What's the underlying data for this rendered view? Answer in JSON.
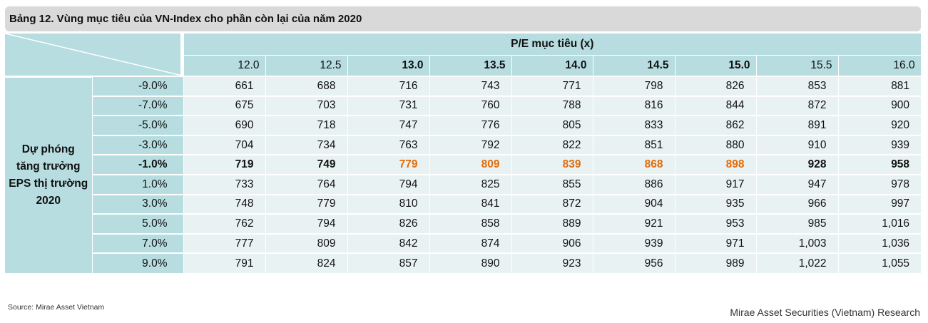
{
  "title": "Bảng 12. Vùng mục tiêu của VN-Index cho phần còn lại của năm 2020",
  "pe_title": "P/E mục tiêu (x)",
  "pe_values": [
    {
      "label": "12.0",
      "bold": false
    },
    {
      "label": "12.5",
      "bold": false
    },
    {
      "label": "13.0",
      "bold": true
    },
    {
      "label": "13.5",
      "bold": true
    },
    {
      "label": "14.0",
      "bold": true
    },
    {
      "label": "14.5",
      "bold": true
    },
    {
      "label": "15.0",
      "bold": true
    },
    {
      "label": "15.5",
      "bold": false
    },
    {
      "label": "16.0",
      "bold": false
    }
  ],
  "row_header": {
    "line1": "Dự phóng",
    "line2": "tăng trưởng",
    "line3": "EPS thị trường",
    "line4": "2020"
  },
  "rows": [
    {
      "growth": "-9.0%",
      "highlight": false,
      "cells": [
        {
          "v": "661"
        },
        {
          "v": "688"
        },
        {
          "v": "716"
        },
        {
          "v": "743"
        },
        {
          "v": "771"
        },
        {
          "v": "798"
        },
        {
          "v": "826"
        },
        {
          "v": "853"
        },
        {
          "v": "881"
        }
      ]
    },
    {
      "growth": "-7.0%",
      "highlight": false,
      "cells": [
        {
          "v": "675"
        },
        {
          "v": "703"
        },
        {
          "v": "731"
        },
        {
          "v": "760"
        },
        {
          "v": "788"
        },
        {
          "v": "816"
        },
        {
          "v": "844"
        },
        {
          "v": "872"
        },
        {
          "v": "900"
        }
      ]
    },
    {
      "growth": "-5.0%",
      "highlight": false,
      "cells": [
        {
          "v": "690"
        },
        {
          "v": "718"
        },
        {
          "v": "747"
        },
        {
          "v": "776"
        },
        {
          "v": "805"
        },
        {
          "v": "833"
        },
        {
          "v": "862"
        },
        {
          "v": "891"
        },
        {
          "v": "920"
        }
      ]
    },
    {
      "growth": "-3.0%",
      "highlight": false,
      "cells": [
        {
          "v": "704"
        },
        {
          "v": "734"
        },
        {
          "v": "763"
        },
        {
          "v": "792"
        },
        {
          "v": "822"
        },
        {
          "v": "851"
        },
        {
          "v": "880"
        },
        {
          "v": "910"
        },
        {
          "v": "939"
        }
      ]
    },
    {
      "growth": "-1.0%",
      "highlight": true,
      "cells": [
        {
          "v": "719"
        },
        {
          "v": "749"
        },
        {
          "v": "779",
          "orange": true
        },
        {
          "v": "809",
          "orange": true
        },
        {
          "v": "839",
          "orange": true
        },
        {
          "v": "868",
          "orange": true
        },
        {
          "v": "898",
          "orange": true
        },
        {
          "v": "928"
        },
        {
          "v": "958"
        }
      ]
    },
    {
      "growth": "1.0%",
      "highlight": false,
      "cells": [
        {
          "v": "733"
        },
        {
          "v": "764"
        },
        {
          "v": "794"
        },
        {
          "v": "825"
        },
        {
          "v": "855"
        },
        {
          "v": "886"
        },
        {
          "v": "917"
        },
        {
          "v": "947"
        },
        {
          "v": "978"
        }
      ]
    },
    {
      "growth": "3.0%",
      "highlight": false,
      "cells": [
        {
          "v": "748"
        },
        {
          "v": "779"
        },
        {
          "v": "810"
        },
        {
          "v": "841"
        },
        {
          "v": "872"
        },
        {
          "v": "904"
        },
        {
          "v": "935"
        },
        {
          "v": "966"
        },
        {
          "v": "997"
        }
      ]
    },
    {
      "growth": "5.0%",
      "highlight": false,
      "cells": [
        {
          "v": "762"
        },
        {
          "v": "794"
        },
        {
          "v": "826"
        },
        {
          "v": "858"
        },
        {
          "v": "889"
        },
        {
          "v": "921"
        },
        {
          "v": "953"
        },
        {
          "v": "985"
        },
        {
          "v": "1,016"
        }
      ]
    },
    {
      "growth": "7.0%",
      "highlight": false,
      "cells": [
        {
          "v": "777"
        },
        {
          "v": "809"
        },
        {
          "v": "842"
        },
        {
          "v": "874"
        },
        {
          "v": "906"
        },
        {
          "v": "939"
        },
        {
          "v": "971"
        },
        {
          "v": "1,003"
        },
        {
          "v": "1,036"
        }
      ]
    },
    {
      "growth": "9.0%",
      "highlight": false,
      "cells": [
        {
          "v": "791"
        },
        {
          "v": "824"
        },
        {
          "v": "857"
        },
        {
          "v": "890"
        },
        {
          "v": "923"
        },
        {
          "v": "956"
        },
        {
          "v": "989"
        },
        {
          "v": "1,022"
        },
        {
          "v": "1,055"
        }
      ]
    }
  ],
  "source": "Source: Mirae Asset Vietnam",
  "footer": "Mirae Asset Securities (Vietnam) Research",
  "colors": {
    "header_teal": "#b7dde1",
    "cell_bg": "#e9f2f3",
    "highlight_orange": "#e36c0a",
    "title_bar_gray": "#d9d9d9"
  }
}
